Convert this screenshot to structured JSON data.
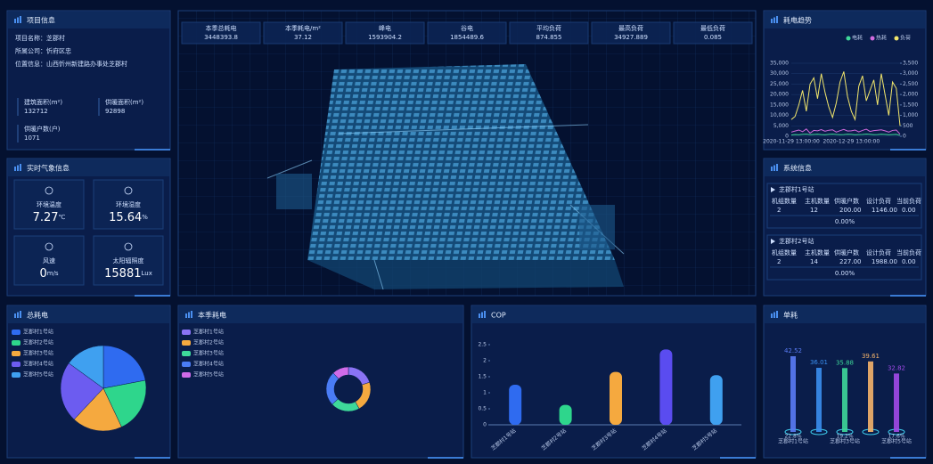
{
  "project_info": {
    "title": "项目信息",
    "fields": [
      {
        "label": "项目名称：",
        "value": "芝郡村"
      },
      {
        "label": "所属公司：",
        "value": "忻府区忠"
      },
      {
        "label": "位置信息：",
        "value": "山西忻州新建路办事处芝郡村"
      }
    ],
    "stats": [
      {
        "label": "建筑面积(m²)",
        "value": "132712"
      },
      {
        "label": "供暖面积(m²)",
        "value": "92898"
      },
      {
        "label": "供暖户数(户)",
        "value": "1071"
      }
    ]
  },
  "weather": {
    "title": "实时气象信息",
    "items": [
      {
        "label": "环境温度",
        "value": "7.27",
        "unit": "℃"
      },
      {
        "label": "环境湿度",
        "value": "15.64",
        "unit": "%"
      },
      {
        "label": "风速",
        "value": "0",
        "unit": "m/s"
      },
      {
        "label": "太阳辐照度",
        "value": "15881",
        "unit": "Lux"
      }
    ]
  },
  "summary": [
    {
      "label": "本季总耗电",
      "value": "3448393.8"
    },
    {
      "label": "本季耗电/m²",
      "value": "37.12"
    },
    {
      "label": "峰电",
      "value": "1593904.2"
    },
    {
      "label": "谷电",
      "value": "1854489.6"
    },
    {
      "label": "平均负荷",
      "value": "874.855"
    },
    {
      "label": "最高负荷",
      "value": "34927.889"
    },
    {
      "label": "最低负荷",
      "value": "0.085"
    }
  ],
  "system_info": {
    "title": "系统信息",
    "columns": [
      "机组数量",
      "主机数量",
      "供暖户数",
      "设计负荷",
      "当前负荷"
    ],
    "stations": [
      {
        "name": "芝郡村1号站",
        "row": [
          "2",
          "12",
          "200.00",
          "1146.00",
          "0.00"
        ],
        "rate": "0.00%"
      },
      {
        "name": "芝郡村2号站",
        "row": [
          "2",
          "14",
          "227.00",
          "1988.00",
          "0.00"
        ],
        "rate": "0.00%"
      }
    ]
  },
  "chart_data": [
    {
      "type": "line",
      "title": "耗电趋势",
      "categories": [
        "2020-11-29 13:00:00",
        null,
        null,
        null,
        null,
        null,
        null,
        null,
        null,
        null,
        null,
        null,
        null,
        null,
        null,
        null,
        "2020-12-29 13:00:00",
        null,
        null,
        null,
        null,
        null,
        null,
        null,
        null,
        null,
        null,
        null,
        null,
        null
      ],
      "series": [
        {
          "name": "电耗",
          "color": "#3fd89a",
          "axis": "y2",
          "values": [
            60,
            80,
            70,
            90,
            100,
            75,
            85,
            95,
            80,
            70,
            90,
            100,
            85,
            75,
            80,
            95,
            90,
            70,
            80,
            85,
            100,
            90,
            75,
            80,
            95,
            85,
            70,
            80,
            90,
            40
          ]
        },
        {
          "name": "热耗",
          "color": "#d36be0",
          "values": [
            2000,
            2500,
            3000,
            2200,
            3500,
            1500,
            2800,
            2600,
            3200,
            2400,
            2900,
            3100,
            2000,
            2700,
            3300,
            2500,
            2600,
            3000,
            2100,
            2800,
            3400,
            2300,
            2700,
            2900,
            3100,
            2600,
            2000,
            2800,
            3000,
            1000
          ]
        },
        {
          "name": "负荷",
          "color": "#f2e66b",
          "values": [
            8000,
            9500,
            15000,
            22000,
            12000,
            25000,
            28000,
            18000,
            30000,
            21000,
            14000,
            9000,
            16000,
            26000,
            31000,
            19000,
            12000,
            8000,
            24000,
            29000,
            17000,
            22000,
            27000,
            15000,
            30000,
            20000,
            10000,
            26000,
            23000,
            5000
          ]
        }
      ],
      "ylim": [
        0,
        35000
      ],
      "yticks": [
        0,
        {
          "value": 5000,
          "label": "5,000"
        },
        {
          "value": 10000,
          "label": "10,000"
        },
        {
          "value": 15000,
          "label": "15,000"
        },
        {
          "value": 20000,
          "label": "20,000"
        },
        {
          "value": 25000,
          "label": "25,000"
        },
        {
          "value": 30000,
          "label": "30,000"
        },
        {
          "value": 35000,
          "label": "35,000"
        }
      ],
      "y2lim": [
        0,
        3500
      ],
      "y2ticks": [
        0,
        500,
        {
          "value": 1000,
          "label": "1,000"
        },
        {
          "value": 1500,
          "label": "1,500"
        },
        {
          "value": 2000,
          "label": "2,000"
        },
        {
          "value": 2500,
          "label": "2,500"
        },
        {
          "value": 3000,
          "label": "3,000"
        },
        {
          "value": 3500,
          "label": "3,500"
        }
      ],
      "grid": true
    },
    {
      "type": "pie",
      "title": "总耗电",
      "categories": [
        "芝郡村1号站",
        "芝郡村2号站",
        "芝郡村3号站",
        "芝郡村4号站",
        "芝郡村5号站"
      ],
      "values": [
        22,
        21,
        19,
        23,
        15
      ],
      "colors": [
        "#2f6bf0",
        "#2ed68c",
        "#f5a93f",
        "#6c5cf0",
        "#3fa0f0"
      ]
    },
    {
      "type": "donut",
      "title": "本季耗电",
      "categories": [
        "芝郡村1号站",
        "芝郡村2号站",
        "芝郡村3号站",
        "芝郡村4号站",
        "芝郡村5号站"
      ],
      "values": [
        20,
        22,
        21,
        25,
        12
      ],
      "colors": [
        "#8a73f5",
        "#f5a93f",
        "#3ed99a",
        "#4a7cf5",
        "#d06be8"
      ]
    },
    {
      "type": "bar",
      "title": "COP",
      "categories": [
        "芝郡村1号站",
        "芝郡村2号站",
        "芝郡村3号站",
        "芝郡村4号站",
        "芝郡村5号站"
      ],
      "values": [
        1.25,
        0.62,
        1.65,
        2.35,
        1.55
      ],
      "colors": [
        "#2f6bf0",
        "#2ed68c",
        "#f5a93f",
        "#5a4cf0",
        "#3fa0f0"
      ],
      "ylim": [
        0,
        2.5
      ],
      "yticks": [
        0,
        0.5,
        1,
        1.5,
        2,
        2.5
      ]
    },
    {
      "type": "bar",
      "title": "单耗",
      "categories": [
        "芝郡村1号站",
        null,
        "芝郡村3号站",
        null,
        "芝郡村5号站"
      ],
      "values": [
        42.52,
        36.01,
        35.88,
        39.61,
        32.82
      ],
      "share_labels": [
        "22.8%",
        null,
        "19.2%",
        null,
        "17.6%"
      ],
      "colors": [
        "#5a7cf5",
        "#3a8ff0",
        "#3ed99a",
        "#f5b46a",
        "#a24ae8"
      ]
    }
  ]
}
